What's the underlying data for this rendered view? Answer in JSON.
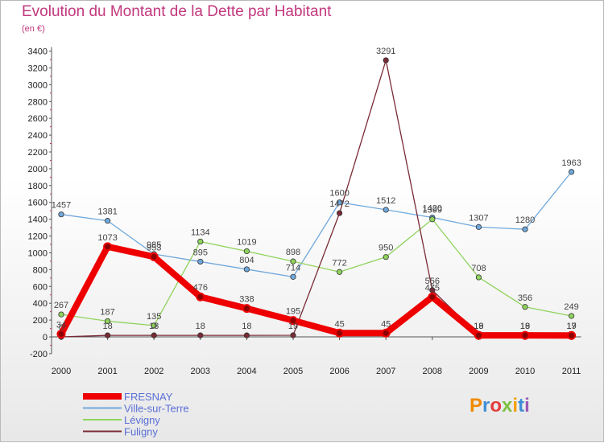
{
  "chart_data": {
    "type": "line",
    "title": "Evolution du Montant de la Dette par Habitant",
    "subtitle": "(en €)",
    "categories": [
      "2000",
      "2001",
      "2002",
      "2003",
      "2004",
      "2005",
      "2006",
      "2007",
      "2008",
      "2009",
      "2010",
      "2011"
    ],
    "yticks": [
      "-200",
      "0",
      "200",
      "400",
      "600",
      "800",
      "1000",
      "1200",
      "1400",
      "1600",
      "1800",
      "2000",
      "2200",
      "2400",
      "2600",
      "2800",
      "3000",
      "3200",
      "3400"
    ],
    "ylim": [
      -200,
      3400
    ],
    "grid": false,
    "legend_position": "bottom-left",
    "series": [
      {
        "name": "FRESNAY",
        "color": "#ee0000",
        "values": [
          34,
          1073,
          953,
          476,
          338,
          195,
          45,
          45,
          475,
          18,
          18,
          17
        ],
        "labels": [
          "34",
          "1073",
          "953",
          "476",
          "338",
          "195",
          "45",
          "45",
          "475",
          "18",
          "18",
          "17"
        ]
      },
      {
        "name": "Ville-sur-Terre",
        "color": "#6fa8dc",
        "values": [
          1457,
          1381,
          985,
          895,
          804,
          714,
          1600,
          1512,
          1420,
          1307,
          1280,
          1963
        ],
        "labels": [
          "1457",
          "1381",
          "985",
          "895",
          "804",
          "714",
          "1600",
          "1512",
          "1420",
          "1307",
          "1280",
          "1963"
        ]
      },
      {
        "name": "Lévigny",
        "color": "#8fd35b",
        "values": [
          267,
          187,
          135,
          1134,
          1019,
          898,
          772,
          950,
          1399,
          708,
          356,
          249
        ],
        "labels": [
          "267",
          "187",
          "135",
          "1134",
          "1019",
          "898",
          "772",
          "950",
          "1399",
          "708",
          "356",
          "249"
        ]
      },
      {
        "name": "Fuligny",
        "color": "#7a2a35",
        "values": [
          0,
          18,
          18,
          18,
          18,
          19,
          1472,
          3291,
          556,
          19,
          19,
          19
        ],
        "labels": [
          "0",
          "18",
          "18",
          "18",
          "18",
          "19",
          "1472",
          "3291",
          "556",
          "19",
          "19",
          "19"
        ]
      }
    ]
  },
  "logo": {
    "text": "Proxiti"
  }
}
